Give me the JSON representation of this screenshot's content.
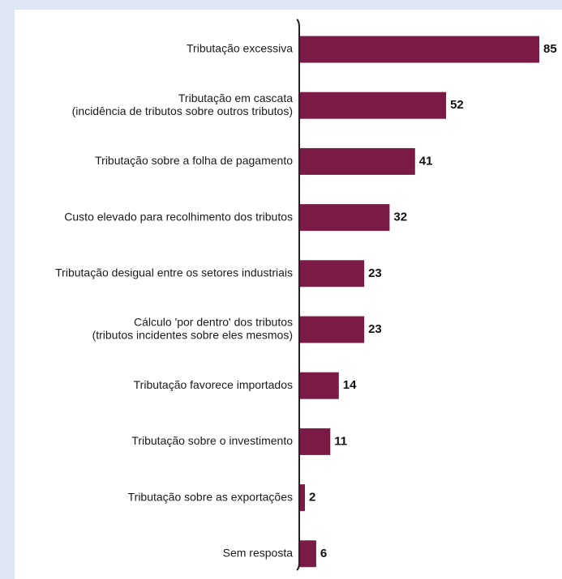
{
  "chart_data": {
    "type": "bar",
    "orientation": "horizontal",
    "categories": [
      [
        "Tributação excessiva"
      ],
      [
        "Tributação em cascata",
        "(incidência de tributos sobre outros tributos)"
      ],
      [
        "Tributação sobre a folha de pagamento"
      ],
      [
        "Custo elevado para recolhimento dos tributos"
      ],
      [
        "Tributação desigual entre os setores industriais"
      ],
      [
        "Cálculo 'por dentro' dos tributos",
        "(tributos incidentes sobre eles mesmos)"
      ],
      [
        "Tributação favorece importados"
      ],
      [
        "Tributação sobre o investimento"
      ],
      [
        "Tributação sobre as exportações"
      ],
      [
        "Sem resposta"
      ]
    ],
    "values": [
      85,
      52,
      41,
      32,
      23,
      23,
      14,
      11,
      2,
      6
    ],
    "value_labels": [
      "85",
      "52",
      "41",
      "32",
      "23",
      "23",
      "14",
      "11",
      "2",
      "6"
    ],
    "xlim": [
      0,
      85
    ],
    "bar_color": "#7a1b45",
    "axis_color": "#222222",
    "grid": false,
    "legend": "none"
  }
}
